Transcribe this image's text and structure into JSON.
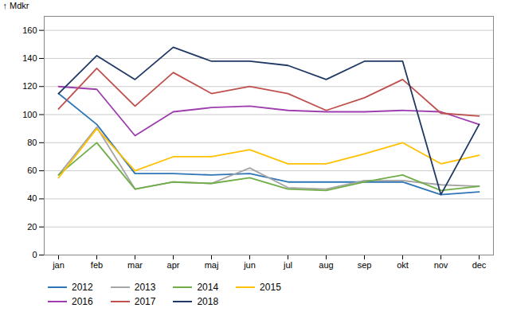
{
  "chart_data": {
    "type": "line",
    "categories": [
      "jan",
      "feb",
      "mar",
      "apr",
      "maj",
      "jun",
      "jul",
      "aug",
      "sep",
      "okt",
      "nov",
      "dec"
    ],
    "series": [
      {
        "name": "2012",
        "color": "#2E75B6",
        "values": [
          115,
          93,
          58,
          58,
          57,
          58,
          52,
          52,
          52,
          52,
          43,
          45
        ]
      },
      {
        "name": "2013",
        "color": "#A5A5A5",
        "values": [
          57,
          91,
          47,
          52,
          51,
          62,
          48,
          47,
          53,
          53,
          50,
          49
        ]
      },
      {
        "name": "2014",
        "color": "#70AD47",
        "values": [
          57,
          80,
          47,
          52,
          51,
          55,
          47,
          46,
          52,
          57,
          46,
          49
        ]
      },
      {
        "name": "2015",
        "color": "#FFC000",
        "values": [
          55,
          90,
          60,
          70,
          70,
          75,
          65,
          65,
          72,
          80,
          65,
          71
        ]
      },
      {
        "name": "2016",
        "color": "#9E3DAF",
        "values": [
          120,
          118,
          85,
          102,
          105,
          106,
          103,
          102,
          102,
          103,
          102,
          93
        ]
      },
      {
        "name": "2017",
        "color": "#C0504D",
        "values": [
          104,
          133,
          106,
          130,
          115,
          120,
          115,
          103,
          112,
          125,
          101,
          99
        ]
      },
      {
        "name": "2018",
        "color": "#1F3864",
        "values": [
          115,
          142,
          125,
          148,
          138,
          138,
          135,
          125,
          138,
          138,
          43,
          93
        ]
      }
    ],
    "ylabel": "Mdkr",
    "ylim": [
      0,
      170
    ],
    "yticks": [
      0,
      20,
      40,
      60,
      80,
      100,
      120,
      140,
      160
    ],
    "grid": true,
    "legend": "bottom"
  }
}
